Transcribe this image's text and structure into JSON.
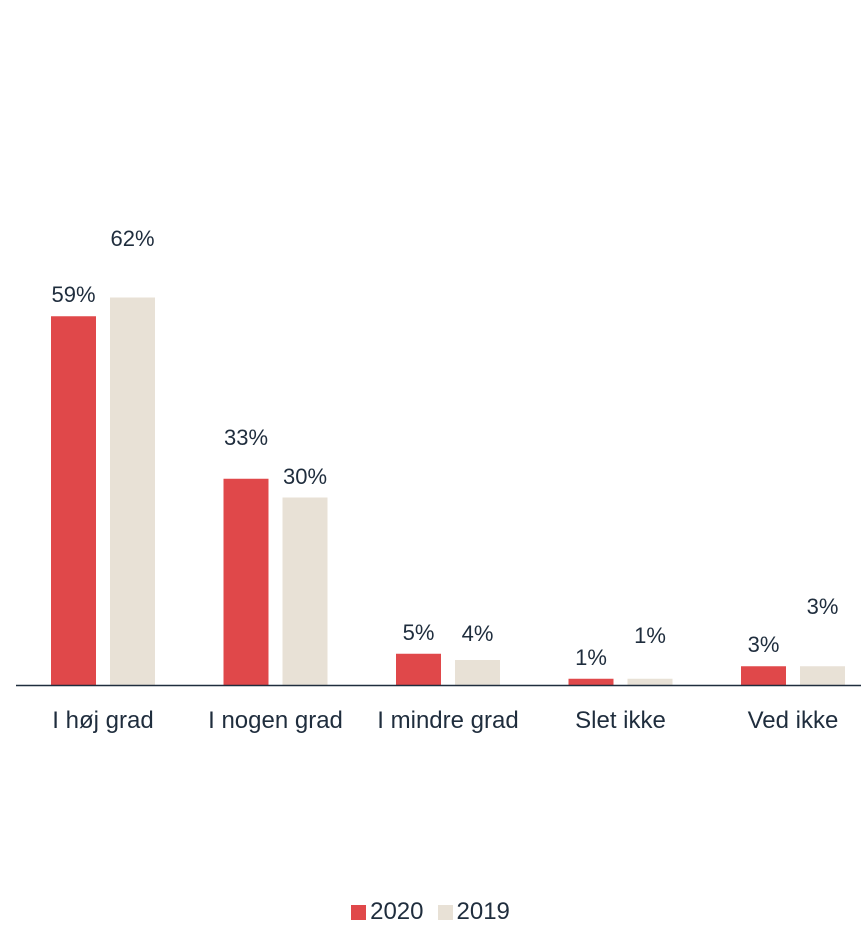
{
  "chart_data": {
    "type": "bar",
    "categories": [
      "I høj grad",
      "I nogen grad",
      "I mindre grad",
      "Slet ikke",
      "Ved ikke"
    ],
    "series": [
      {
        "name": "2020",
        "values": [
          59,
          33,
          5,
          1,
          3
        ],
        "labels": [
          "59%",
          "33%",
          "5%",
          "1%",
          "3%"
        ],
        "color": "#e0484a"
      },
      {
        "name": "2019",
        "values": [
          62,
          30,
          4,
          1,
          3
        ],
        "labels": [
          "62%",
          "30%",
          "4%",
          "1%",
          "3%"
        ],
        "color": "#e8e1d6"
      }
    ],
    "ylim": [
      0,
      70
    ],
    "grid": false,
    "legend_position": "bottom-center"
  }
}
